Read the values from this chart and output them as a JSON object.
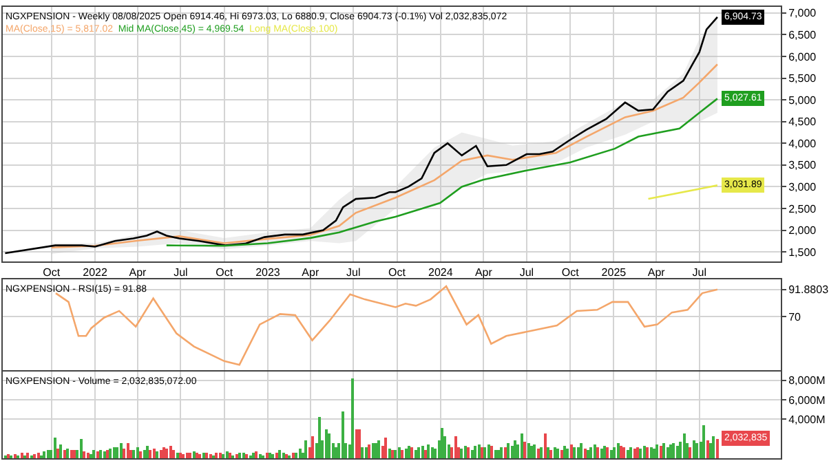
{
  "chart_data": [
    {
      "type": "line",
      "title": "NGXPENSION - Weekly 08/08/2025 Open 6914.46, Hi 6973.03, Lo 6880.9, Close 6904.73 (-0.1%) Vol 2,032,835,072",
      "grid": true,
      "line_style": "solid",
      "xlim": [
        "2021-06-20",
        "2025-12-20"
      ],
      "xticks": [
        {
          "value": "2021-10-01",
          "label": "Oct"
        },
        {
          "value": "2022-01-01",
          "label": "2022"
        },
        {
          "value": "2022-04-01",
          "label": "Apr"
        },
        {
          "value": "2022-07-01",
          "label": "Jul"
        },
        {
          "value": "2022-10-01",
          "label": "Oct"
        },
        {
          "value": "2023-01-01",
          "label": "2023"
        },
        {
          "value": "2023-04-01",
          "label": "Apr"
        },
        {
          "value": "2023-07-01",
          "label": "Jul"
        },
        {
          "value": "2023-10-01",
          "label": "Oct"
        },
        {
          "value": "2024-01-01",
          "label": "2024"
        },
        {
          "value": "2024-04-01",
          "label": "Apr"
        },
        {
          "value": "2024-07-01",
          "label": "Jul"
        },
        {
          "value": "2024-10-01",
          "label": "Oct"
        },
        {
          "value": "2025-01-01",
          "label": "2025"
        },
        {
          "value": "2025-04-01",
          "label": "Apr"
        },
        {
          "value": "2025-07-01",
          "label": "Jul"
        }
      ],
      "ylim": [
        1280,
        7140
      ],
      "yticks": [
        {
          "value": 1500,
          "label": "1,500"
        },
        {
          "value": 2000,
          "label": "2,000"
        },
        {
          "value": 2500,
          "label": "2,500"
        },
        {
          "value": 3000,
          "label": "3,000"
        },
        {
          "value": 3500,
          "label": "3,500"
        },
        {
          "value": 4000,
          "label": "4,000"
        },
        {
          "value": 4500,
          "label": "4,500"
        },
        {
          "value": 5000,
          "label": "5,000"
        },
        {
          "value": 5500,
          "label": "5,500"
        },
        {
          "value": 6000,
          "label": "6,000"
        },
        {
          "value": 6500,
          "label": "6,500"
        },
        {
          "value": 7000,
          "label": "7,000"
        }
      ],
      "series": [
        {
          "name": "MA(Close,15) = 5,817.02",
          "color": "#f4a66a",
          "x": [
            "2021-10-01",
            "2022-01-01",
            "2022-04-01",
            "2022-06-28",
            "2022-10-01",
            "2023-01-01",
            "2023-04-01",
            "2023-06-01",
            "2023-07-06",
            "2023-09-28",
            "2023-12-19",
            "2024-02-15",
            "2024-04-09",
            "2024-06-01",
            "2024-09-01",
            "2024-11-04",
            "2025-01-25",
            "2025-03-25",
            "2025-05-28",
            "2025-07-01",
            "2025-08-08"
          ],
          "values": [
            1600,
            1640,
            1760,
            1860,
            1700,
            1800,
            1890,
            2100,
            2400,
            2750,
            3150,
            3600,
            3720,
            3620,
            3780,
            4150,
            4600,
            4750,
            5050,
            5400,
            5817.02
          ],
          "lower": [
            1450,
            1580,
            1620,
            1700,
            1560,
            1650,
            1750,
            1700,
            1750,
            2500,
            2550,
            3000,
            3300,
            3350,
            3550,
            3900,
            4200,
            4500,
            4500,
            4500,
            4700
          ],
          "upper": [
            1700,
            1700,
            1900,
            2000,
            1820,
            1950,
            2050,
            2700,
            3000,
            3000,
            3900,
            4250,
            4100,
            3950,
            4050,
            4450,
            4950,
            5000,
            5600,
            6400,
            6950
          ]
        },
        {
          "color": "#000000",
          "x": [
            "2021-06-25",
            "2021-10-09",
            "2021-12-04",
            "2022-01-01",
            "2022-02-12",
            "2022-03-23",
            "2022-04-20",
            "2022-05-12",
            "2022-06-01",
            "2022-06-28",
            "2022-08-09",
            "2022-10-03",
            "2022-11-14",
            "2022-12-25",
            "2023-02-06",
            "2023-03-16",
            "2023-04-28",
            "2023-05-25",
            "2023-06-09",
            "2023-06-22",
            "2023-07-06",
            "2023-08-16",
            "2023-09-15",
            "2023-09-28",
            "2023-10-25",
            "2023-11-22",
            "2023-12-19",
            "2024-01-16",
            "2024-02-15",
            "2024-03-16",
            "2024-04-09",
            "2024-05-19",
            "2024-07-01",
            "2024-07-28",
            "2024-08-25",
            "2024-09-28",
            "2024-11-04",
            "2024-12-16",
            "2025-01-25",
            "2025-02-22",
            "2025-03-25",
            "2025-04-25",
            "2025-05-28",
            "2025-06-16",
            "2025-07-01",
            "2025-07-16",
            "2025-08-08"
          ],
          "values": [
            1470,
            1650,
            1650,
            1620,
            1750,
            1810,
            1875,
            1970,
            1875,
            1810,
            1750,
            1650,
            1690,
            1840,
            1900,
            1900,
            2000,
            2220,
            2530,
            2620,
            2720,
            2750,
            2875,
            2875,
            3000,
            3190,
            3780,
            4000,
            3720,
            3940,
            3470,
            3500,
            3750,
            3750,
            3810,
            4060,
            4310,
            4560,
            4940,
            4750,
            4780,
            5190,
            5440,
            5810,
            6100,
            6620,
            6904.73
          ]
        },
        {
          "name": "Mid MA(Close,45) = 4,969.54",
          "color": "#1f9e1f",
          "x": [
            "2022-06-01",
            "2022-10-01",
            "2023-01-01",
            "2023-04-01",
            "2023-06-01",
            "2023-08-16",
            "2023-09-28",
            "2023-12-31",
            "2024-02-15",
            "2024-03-31",
            "2024-07-01",
            "2024-10-01",
            "2025-01-03",
            "2025-02-22",
            "2025-05-20",
            "2025-07-03",
            "2025-08-08"
          ],
          "values": [
            1650,
            1640,
            1700,
            1820,
            1950,
            2200,
            2310,
            2625,
            3000,
            3160,
            3375,
            3560,
            3875,
            4155,
            4340,
            4720,
            5027.61
          ]
        },
        {
          "name": "Long MA(Close,100)",
          "color": "#e6e84a",
          "x": [
            "2025-03-15",
            "2025-08-08"
          ],
          "values": [
            2720,
            3031.89
          ]
        }
      ],
      "annotations": [
        {
          "text": "6,904.73",
          "x": "2025-08-08",
          "y": 6904.73
        },
        {
          "text": "5,027.61",
          "x": "2025-08-08",
          "y": 5027.61
        },
        {
          "text": "3,031.89",
          "x": "2025-08-08",
          "y": 3031.89
        }
      ]
    },
    {
      "type": "line",
      "title": "NGXPENSION - RSI(15) = 91.88",
      "grid": true,
      "line_style": "solid",
      "tick_labels": "y",
      "xlim": [
        "2021-06-20",
        "2025-12-20"
      ],
      "xticks": [
        {
          "value": "2021-10-01",
          "label": null
        },
        {
          "value": "2022-01-01",
          "label": null
        },
        {
          "value": "2022-04-01",
          "label": null
        },
        {
          "value": "2022-07-01",
          "label": null
        },
        {
          "value": "2022-10-01",
          "label": null
        },
        {
          "value": "2023-01-01",
          "label": null
        },
        {
          "value": "2023-04-01",
          "label": null
        },
        {
          "value": "2023-07-01",
          "label": null
        },
        {
          "value": "2023-10-01",
          "label": null
        },
        {
          "value": "2024-01-01",
          "label": null
        },
        {
          "value": "2024-04-01",
          "label": null
        },
        {
          "value": "2024-07-01",
          "label": null
        },
        {
          "value": "2024-10-01",
          "label": null
        },
        {
          "value": "2025-01-01",
          "label": null
        },
        {
          "value": "2025-04-01",
          "label": null
        },
        {
          "value": "2025-07-01",
          "label": null
        }
      ],
      "ylim": [
        27,
        100
      ],
      "yticks": [
        70,
        91.8803
      ],
      "series": [
        {
          "color": "#f4a66a",
          "x": [
            "2021-10-10",
            "2021-11-06",
            "2021-11-27",
            "2021-12-13",
            "2021-12-24",
            "2022-01-20",
            "2022-02-21",
            "2022-03-28",
            "2022-05-04",
            "2022-06-22",
            "2022-07-29",
            "2022-10-01",
            "2022-11-02",
            "2022-12-15",
            "2023-01-27",
            "2023-02-28",
            "2023-04-05",
            "2023-05-12",
            "2023-06-24",
            "2023-07-25",
            "2023-09-28",
            "2023-10-19",
            "2023-11-10",
            "2023-12-11",
            "2024-01-13",
            "2024-02-25",
            "2024-03-21",
            "2024-04-17",
            "2024-05-19",
            "2024-07-11",
            "2024-09-03",
            "2024-10-15",
            "2024-11-27",
            "2024-12-29",
            "2025-01-31",
            "2025-03-07",
            "2025-04-03",
            "2025-05-04",
            "2025-06-06",
            "2025-07-07",
            "2025-08-08"
          ],
          "values": [
            88.9,
            81.8,
            54.5,
            54.5,
            60.8,
            69.2,
            74.6,
            62,
            84.7,
            56.6,
            46,
            34.3,
            31.3,
            63.7,
            72.1,
            71.3,
            51,
            67,
            88,
            83.9,
            77.6,
            80.5,
            78.8,
            83.9,
            94.4,
            63.7,
            71.3,
            48.2,
            54.5,
            58.7,
            62.9,
            74.6,
            75.5,
            81.8,
            81.8,
            62,
            63.7,
            73.4,
            75.5,
            88.9,
            91.88
          ]
        }
      ]
    },
    {
      "type": "bar",
      "title": "NGXPENSION - Volume = 2,032,835,072.00",
      "grid": true,
      "tick_labels": "y",
      "xlim": [
        "2021-06-20",
        "2025-12-20"
      ],
      "xticks": [
        {
          "value": "2021-10-01",
          "label": null
        },
        {
          "value": "2022-01-01",
          "label": null
        },
        {
          "value": "2022-04-01",
          "label": null
        },
        {
          "value": "2022-07-01",
          "label": null
        },
        {
          "value": "2022-10-01",
          "label": null
        },
        {
          "value": "2023-01-01",
          "label": null
        },
        {
          "value": "2023-04-01",
          "label": null
        },
        {
          "value": "2023-07-01",
          "label": null
        },
        {
          "value": "2023-10-01",
          "label": null
        },
        {
          "value": "2024-01-01",
          "label": null
        },
        {
          "value": "2024-04-01",
          "label": null
        },
        {
          "value": "2024-07-01",
          "label": null
        },
        {
          "value": "2024-10-01",
          "label": null
        },
        {
          "value": "2025-01-01",
          "label": null
        },
        {
          "value": "2025-04-01",
          "label": null
        },
        {
          "value": "2025-07-01",
          "label": null
        }
      ],
      "ylim": [
        0,
        8900
      ],
      "yticks": [
        {
          "value": 4000,
          "label": "4,000M"
        },
        {
          "value": 6000,
          "label": "6,000M"
        },
        {
          "value": 8000,
          "label": "8,000M"
        }
      ],
      "x": [
        "2021-06-25",
        "2021-07-02",
        "2021-07-09",
        "2021-07-16",
        "2021-07-23",
        "2021-07-30",
        "2021-08-06",
        "2021-08-13",
        "2021-08-20",
        "2021-08-27",
        "2021-09-03",
        "2021-09-10",
        "2021-09-17",
        "2021-09-24",
        "2021-10-01",
        "2021-10-08",
        "2021-10-15",
        "2021-10-22",
        "2021-10-29",
        "2021-11-05",
        "2021-11-12",
        "2021-11-19",
        "2021-11-26",
        "2021-12-03",
        "2021-12-10",
        "2021-12-17",
        "2021-12-24",
        "2021-12-31",
        "2022-01-07",
        "2022-01-14",
        "2022-01-21",
        "2022-01-28",
        "2022-02-04",
        "2022-02-11",
        "2022-02-18",
        "2022-02-25",
        "2022-03-04",
        "2022-03-11",
        "2022-03-18",
        "2022-03-25",
        "2022-04-01",
        "2022-04-08",
        "2022-04-15",
        "2022-04-22",
        "2022-04-29",
        "2022-05-06",
        "2022-05-13",
        "2022-05-20",
        "2022-05-27",
        "2022-06-03",
        "2022-06-10",
        "2022-06-17",
        "2022-06-24",
        "2022-07-01",
        "2022-07-08",
        "2022-07-15",
        "2022-07-22",
        "2022-07-29",
        "2022-08-05",
        "2022-08-12",
        "2022-08-19",
        "2022-08-26",
        "2022-09-02",
        "2022-09-09",
        "2022-09-16",
        "2022-09-23",
        "2022-09-30",
        "2022-10-07",
        "2022-10-14",
        "2022-10-21",
        "2022-10-28",
        "2022-11-04",
        "2022-11-11",
        "2022-11-18",
        "2022-11-25",
        "2022-12-02",
        "2022-12-09",
        "2022-12-16",
        "2022-12-23",
        "2022-12-30",
        "2023-01-06",
        "2023-01-13",
        "2023-01-20",
        "2023-01-27",
        "2023-02-03",
        "2023-02-10",
        "2023-02-17",
        "2023-02-24",
        "2023-03-03",
        "2023-03-10",
        "2023-03-17",
        "2023-03-24",
        "2023-03-31",
        "2023-04-07",
        "2023-04-14",
        "2023-04-21",
        "2023-04-28",
        "2023-05-05",
        "2023-05-12",
        "2023-05-19",
        "2023-05-26",
        "2023-06-02",
        "2023-06-09",
        "2023-06-16",
        "2023-06-23",
        "2023-06-30",
        "2023-07-07",
        "2023-07-14",
        "2023-07-21",
        "2023-07-28",
        "2023-08-04",
        "2023-08-11",
        "2023-08-18",
        "2023-08-25",
        "2023-09-01",
        "2023-09-08",
        "2023-09-15",
        "2023-09-22",
        "2023-09-29",
        "2023-10-06",
        "2023-10-13",
        "2023-10-20",
        "2023-10-27",
        "2023-11-03",
        "2023-11-10",
        "2023-11-17",
        "2023-11-24",
        "2023-12-01",
        "2023-12-08",
        "2023-12-15",
        "2023-12-22",
        "2023-12-29",
        "2024-01-05",
        "2024-01-12",
        "2024-01-19",
        "2024-01-26",
        "2024-02-02",
        "2024-02-09",
        "2024-02-16",
        "2024-02-23",
        "2024-03-01",
        "2024-03-08",
        "2024-03-15",
        "2024-03-22",
        "2024-03-29",
        "2024-04-05",
        "2024-04-12",
        "2024-04-19",
        "2024-04-26",
        "2024-05-03",
        "2024-05-10",
        "2024-05-17",
        "2024-05-24",
        "2024-05-31",
        "2024-06-07",
        "2024-06-14",
        "2024-06-21",
        "2024-06-28",
        "2024-07-05",
        "2024-07-12",
        "2024-07-19",
        "2024-07-26",
        "2024-08-02",
        "2024-08-09",
        "2024-08-16",
        "2024-08-23",
        "2024-08-30",
        "2024-09-06",
        "2024-09-13",
        "2024-09-20",
        "2024-09-27",
        "2024-10-04",
        "2024-10-11",
        "2024-10-18",
        "2024-10-25",
        "2024-11-01",
        "2024-11-08",
        "2024-11-15",
        "2024-11-22",
        "2024-11-29",
        "2024-12-06",
        "2024-12-13",
        "2024-12-20",
        "2024-12-27",
        "2025-01-03",
        "2025-01-10",
        "2025-01-17",
        "2025-01-24",
        "2025-01-31",
        "2025-02-07",
        "2025-02-14",
        "2025-02-21",
        "2025-02-28",
        "2025-03-07",
        "2025-03-14",
        "2025-03-21",
        "2025-03-28",
        "2025-04-04",
        "2025-04-11",
        "2025-04-18",
        "2025-04-25",
        "2025-05-02",
        "2025-05-09",
        "2025-05-16",
        "2025-05-23",
        "2025-05-30",
        "2025-06-06",
        "2025-06-13",
        "2025-06-20",
        "2025-06-27",
        "2025-07-04",
        "2025-07-11",
        "2025-07-18",
        "2025-07-25",
        "2025-08-01",
        "2025-08-08"
      ],
      "values": [
        300,
        450,
        250,
        400,
        300,
        550,
        350,
        500,
        300,
        450,
        500,
        300,
        650,
        800,
        900,
        2100,
        1000,
        1400,
        800,
        1000,
        900,
        900,
        800,
        2000,
        700,
        500,
        400,
        800,
        700,
        800,
        700,
        900,
        1000,
        1200,
        1100,
        1500,
        1000,
        1560,
        900,
        800,
        1200,
        700,
        900,
        1300,
        800,
        1000,
        700,
        900,
        1100,
        1000,
        1300,
        800,
        600,
        500,
        400,
        600,
        500,
        700,
        500,
        400,
        600,
        500,
        400,
        300,
        500,
        600,
        400,
        700,
        500,
        300,
        400,
        500,
        600,
        400,
        300,
        500,
        700,
        400,
        300,
        500,
        600,
        400,
        500,
        800,
        500,
        400,
        300,
        600,
        500,
        1000,
        600,
        1800,
        1200,
        2300,
        1500,
        4300,
        1800,
        3000,
        2500,
        1600,
        1200,
        1500,
        4800,
        1500,
        1400,
        8200,
        2950,
        2900,
        1200,
        1100,
        1400,
        1600,
        1500,
        1900,
        1300,
        2100,
        1000,
        900,
        800,
        1100,
        900,
        1000,
        1300,
        1200,
        800,
        1100,
        1300,
        900,
        1400,
        1200,
        1000,
        1900,
        3100,
        2200,
        1400,
        1200,
        2300,
        1100,
        1000,
        1300,
        1200,
        900,
        1300,
        1400,
        1200,
        1100,
        1400,
        1300,
        800,
        900,
        1200,
        1100,
        1600,
        1300,
        1800,
        1400,
        2600,
        1700,
        1500,
        1300,
        1400,
        1000,
        1200,
        2500,
        1100,
        900,
        1200,
        1000,
        800,
        1300,
        1000,
        1400,
        1100,
        1200,
        1600,
        1000,
        900,
        1200,
        1400,
        1100,
        1000,
        1300,
        1200,
        900,
        1100,
        1600,
        1300,
        1100,
        900,
        1200,
        1000,
        1100,
        1000,
        1300,
        1200,
        1100,
        1000,
        1400,
        1300,
        1500,
        1200,
        1400,
        1500,
        1300,
        1700,
        2600,
        1600,
        1200,
        1800,
        1500,
        1700,
        3400,
        1800,
        1500,
        2300,
        2032.835
      ],
      "colors": [
        "#3cb043",
        "#e8474c",
        "#3cb043",
        "#e8474c",
        "#3cb043",
        "#e8474c",
        "#3cb043",
        "#e8474c",
        "#3cb043",
        "#e8474c",
        "#e8474c",
        "#3cb043",
        "#3cb043",
        "#3cb043",
        "#3cb043",
        "#3cb043",
        "#e8474c",
        "#3cb043",
        "#e8474c",
        "#3cb043",
        "#e8474c",
        "#e8474c",
        "#3cb043",
        "#3cb043",
        "#e8474c",
        "#e8474c",
        "#3cb043",
        "#3cb043",
        "#e8474c",
        "#3cb043",
        "#3cb043",
        "#e8474c",
        "#3cb043",
        "#3cb043",
        "#3cb043",
        "#3cb043",
        "#e8474c",
        "#e8474c",
        "#e8474c",
        "#3cb043",
        "#3cb043",
        "#e8474c",
        "#3cb043",
        "#3cb043",
        "#e8474c",
        "#e8474c",
        "#3cb043",
        "#e8474c",
        "#e8474c",
        "#e8474c",
        "#e8474c",
        "#e8474c",
        "#3cb043",
        "#e8474c",
        "#e8474c",
        "#e8474c",
        "#e8474c",
        "#3cb043",
        "#e8474c",
        "#e8474c",
        "#3cb043",
        "#e8474c",
        "#e8474c",
        "#3cb043",
        "#e8474c",
        "#e8474c",
        "#3cb043",
        "#3cb043",
        "#e8474c",
        "#3cb043",
        "#e8474c",
        "#3cb043",
        "#3cb043",
        "#e8474c",
        "#3cb043",
        "#3cb043",
        "#e8474c",
        "#3cb043",
        "#3cb043",
        "#e8474c",
        "#3cb043",
        "#3cb043",
        "#e8474c",
        "#3cb043",
        "#3cb043",
        "#e8474c",
        "#3cb043",
        "#e8474c",
        "#3cb043",
        "#3cb043",
        "#3cb043",
        "#3cb043",
        "#e8474c",
        "#e8474c",
        "#3cb043",
        "#3cb043",
        "#3cb043",
        "#3cb043",
        "#3cb043",
        "#3cb043",
        "#3cb043",
        "#3cb043",
        "#3cb043",
        "#3cb043",
        "#3cb043",
        "#3cb043",
        "#e8474c",
        "#e8474c",
        "#3cb043",
        "#3cb043",
        "#e8474c",
        "#3cb043",
        "#3cb043",
        "#3cb043",
        "#e8474c",
        "#e8474c",
        "#3cb043",
        "#e8474c",
        "#3cb043",
        "#3cb043",
        "#e8474c",
        "#3cb043",
        "#3cb043",
        "#e8474c",
        "#3cb043",
        "#3cb043",
        "#3cb043",
        "#e8474c",
        "#3cb043",
        "#3cb043",
        "#3cb043",
        "#3cb043",
        "#3cb043",
        "#3cb043",
        "#3cb043",
        "#e8474c",
        "#e8474c",
        "#e8474c",
        "#3cb043",
        "#3cb043",
        "#e8474c",
        "#3cb043",
        "#3cb043",
        "#3cb043",
        "#e8474c",
        "#3cb043",
        "#3cb043",
        "#e8474c",
        "#3cb043",
        "#3cb043",
        "#3cb043",
        "#e8474c",
        "#3cb043",
        "#3cb043",
        "#3cb043",
        "#3cb043",
        "#3cb043",
        "#e8474c",
        "#3cb043",
        "#3cb043",
        "#3cb043",
        "#e8474c",
        "#3cb043",
        "#e8474c",
        "#3cb043",
        "#e8474c",
        "#3cb043",
        "#3cb043",
        "#e8474c",
        "#3cb043",
        "#3cb043",
        "#e8474c",
        "#3cb043",
        "#3cb043",
        "#3cb043",
        "#e8474c",
        "#3cb043",
        "#3cb043",
        "#3cb043",
        "#e8474c",
        "#3cb043",
        "#3cb043",
        "#e8474c",
        "#3cb043",
        "#3cb043",
        "#3cb043",
        "#e8474c",
        "#e8474c",
        "#3cb043",
        "#3cb043",
        "#e8474c",
        "#e8474c",
        "#3cb043",
        "#3cb043",
        "#e8474c",
        "#3cb043",
        "#3cb043",
        "#3cb043",
        "#e8474c",
        "#3cb043",
        "#3cb043",
        "#3cb043",
        "#3cb043",
        "#3cb043",
        "#3cb043",
        "#3cb043",
        "#3cb043",
        "#e8474c",
        "#3cb043",
        "#3cb043",
        "#3cb043",
        "#3cb043",
        "#e8474c",
        "#3cb043",
        "#3cb043",
        "#e8474c"
      ],
      "annotations": [
        {
          "text": "2,032,835",
          "x": "2025-08-08",
          "y": 2032.835
        }
      ]
    }
  ]
}
